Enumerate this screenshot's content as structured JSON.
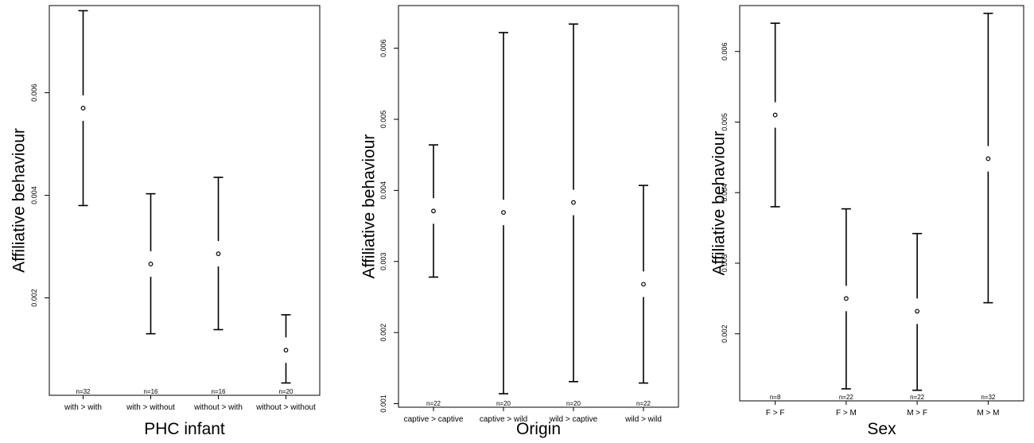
{
  "chart_data": [
    {
      "type": "errorbar",
      "xlabel": "PHC infant",
      "ylabel": "Affiliative behaviour",
      "ylim": [
        0.0001,
        0.0077
      ],
      "yticks": [
        0.002,
        0.004,
        0.006
      ],
      "yticklabels": [
        "0.002",
        "0.004",
        "0.006"
      ],
      "categories": [
        "with > with",
        "with > without",
        "without > with",
        "without > without"
      ],
      "n_labels": [
        "n=32",
        "n=16",
        "n=16",
        "n=20"
      ],
      "mean": [
        0.0057,
        0.00266,
        0.00286,
        0.00098
      ],
      "lower": [
        0.0038,
        0.0013,
        0.00138,
        0.00034
      ],
      "upper": [
        0.0076,
        0.00403,
        0.00435,
        0.00167
      ]
    },
    {
      "type": "errorbar",
      "xlabel": "Origin",
      "ylabel": "Affiliative behaviour",
      "ylim": [
        0.00095,
        0.0066
      ],
      "yticks": [
        0.001,
        0.002,
        0.003,
        0.004,
        0.005,
        0.006
      ],
      "yticklabels": [
        "0.001",
        "0.002",
        "0.003",
        "0.004",
        "0.005",
        "0.006"
      ],
      "categories": [
        "captive > captive",
        "captive > wild",
        "wild > captive",
        "wild > wild"
      ],
      "n_labels": [
        "n=22",
        "n=20",
        "n=20",
        "n=22"
      ],
      "mean": [
        0.00371,
        0.00369,
        0.00383,
        0.00268
      ],
      "lower": [
        0.00278,
        0.00114,
        0.00131,
        0.00129
      ],
      "upper": [
        0.00464,
        0.00622,
        0.00634,
        0.00407
      ]
    },
    {
      "type": "errorbar",
      "xlabel": "Sex",
      "ylabel": "Affiliative behaviour",
      "ylim": [
        0.00105,
        0.00665
      ],
      "yticks": [
        0.002,
        0.003,
        0.004,
        0.005,
        0.006
      ],
      "yticklabels": [
        "0.002",
        "0.003",
        "0.004",
        "0.005",
        "0.006"
      ],
      "categories": [
        "F > F",
        "F > M",
        "M > F",
        "M > M"
      ],
      "n_labels": [
        "n=8",
        "n=22",
        "n=22",
        "n=32"
      ],
      "mean": [
        0.0051,
        0.0025,
        0.00232,
        0.00448
      ],
      "lower": [
        0.0038,
        0.00122,
        0.0012,
        0.00244
      ],
      "upper": [
        0.0064,
        0.00377,
        0.00342,
        0.00654
      ]
    }
  ]
}
